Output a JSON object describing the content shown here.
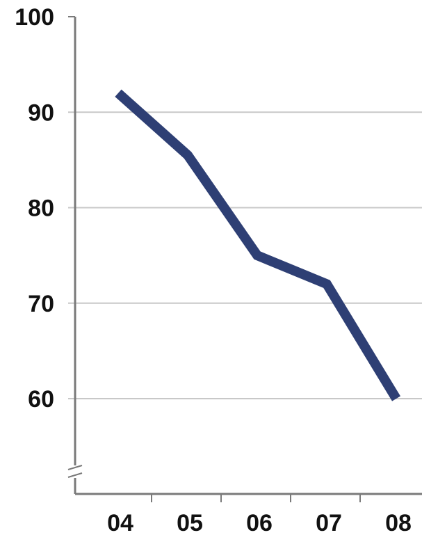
{
  "chart_data": {
    "type": "line",
    "title": "",
    "xlabel": "",
    "ylabel": "",
    "categories": [
      "04",
      "05",
      "06",
      "07",
      "08"
    ],
    "series": [
      {
        "values": [
          92,
          85.5,
          75,
          72,
          60
        ]
      }
    ],
    "y_ticks": [
      60,
      70,
      80,
      90,
      100
    ],
    "y_tick_labels": [
      "60",
      "70",
      "80",
      "90",
      "100"
    ],
    "ylim": [
      50,
      100
    ],
    "grid": true,
    "y_axis_break": true,
    "colors": {
      "line": "#2e3f74",
      "grid": "#c8c8c8",
      "axis": "#7a7a7a",
      "text": "#111111"
    }
  }
}
